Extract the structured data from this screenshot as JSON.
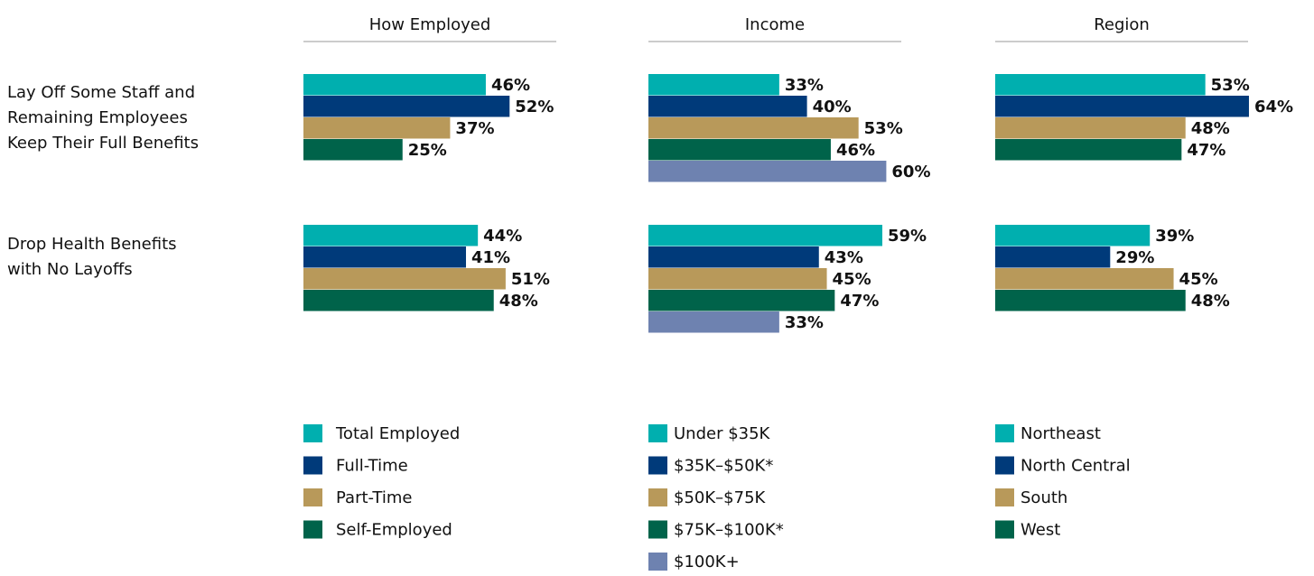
{
  "categories": [
    [
      "Lay Off Some Staff and",
      "Remaining Employees",
      "Keep Their Full Benefits"
    ],
    [
      "Drop Health Benefits",
      "with No Layoffs"
    ]
  ],
  "chart_data": [
    {
      "type": "bar",
      "title": "How Employed",
      "series": [
        {
          "name": "Total Employed",
          "color": "#00afaf",
          "values": [
            46,
            44
          ],
          "value_labels": [
            "46%",
            "44%"
          ]
        },
        {
          "name": "Full-Time",
          "color": "#003a7a",
          "values": [
            52,
            41
          ],
          "value_labels": [
            "52%",
            "41%"
          ]
        },
        {
          "name": "Part-Time",
          "color": "#b8995a",
          "values": [
            37,
            51
          ],
          "value_labels": [
            "37%",
            "51%"
          ]
        },
        {
          "name": "Self-Employed",
          "color": "#00634a",
          "values": [
            25,
            48
          ],
          "value_labels": [
            "25%",
            "48%"
          ]
        }
      ]
    },
    {
      "type": "bar",
      "title": "Income",
      "series": [
        {
          "name": "Under $35K",
          "color": "#00afaf",
          "values": [
            33,
            59
          ],
          "value_labels": [
            "33%",
            "59%"
          ]
        },
        {
          "name": "$35K–$50K*",
          "color": "#003a7a",
          "values": [
            40,
            43
          ],
          "value_labels": [
            "40%",
            "43%"
          ]
        },
        {
          "name": "$50K–$75K",
          "color": "#b8995a",
          "values": [
            53,
            45
          ],
          "value_labels": [
            "53%",
            "45%"
          ]
        },
        {
          "name": "$75K–$100K*",
          "color": "#00634a",
          "values": [
            46,
            47
          ],
          "value_labels": [
            "46%",
            "47%"
          ]
        },
        {
          "name": "$100K+",
          "color": "#6e82b0",
          "values": [
            60,
            33
          ],
          "value_labels": [
            "60%",
            "33%"
          ]
        }
      ]
    },
    {
      "type": "bar",
      "title": "Region",
      "series": [
        {
          "name": "Northeast",
          "color": "#00afaf",
          "values": [
            53,
            39
          ],
          "value_labels": [
            "53%",
            "39%"
          ]
        },
        {
          "name": "North Central",
          "color": "#003a7a",
          "values": [
            64,
            29
          ],
          "value_labels": [
            "64%",
            "29%"
          ]
        },
        {
          "name": "South",
          "color": "#b8995a",
          "values": [
            48,
            45
          ],
          "value_labels": [
            "48%",
            "45%"
          ]
        },
        {
          "name": "West",
          "color": "#00634a",
          "values": [
            47,
            48
          ],
          "value_labels": [
            "47%",
            "48%"
          ]
        }
      ]
    }
  ]
}
